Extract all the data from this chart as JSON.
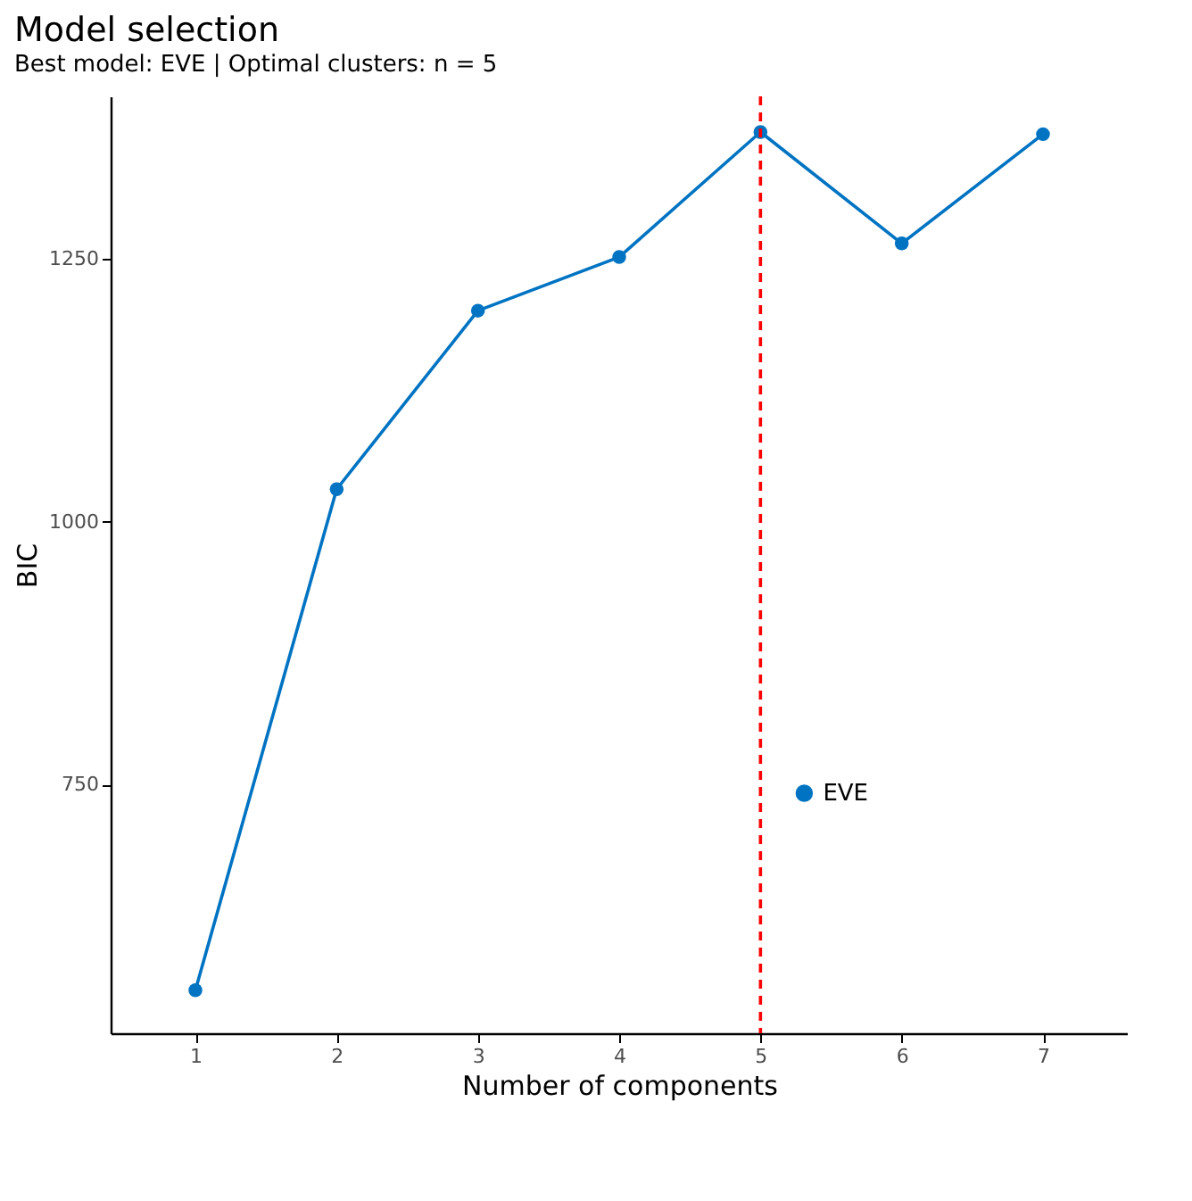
{
  "chart_data": {
    "type": "line",
    "title": "Model selection",
    "subtitle": "Best model: EVE | Optimal clusters: n = 5",
    "xlabel": "Number of components",
    "ylabel": "BIC",
    "x": [
      1,
      2,
      3,
      4,
      5,
      6,
      7
    ],
    "series": [
      {
        "name": "EVE",
        "color": "#0073c2",
        "values": [
          554,
          1031,
          1201,
          1252,
          1371,
          1265,
          1369
        ]
      }
    ],
    "xlim": [
      0.4,
      7.6
    ],
    "xticks": [
      1,
      2,
      3,
      4,
      5,
      6,
      7
    ],
    "ylim": [
      513,
      1405
    ],
    "yticks": [
      750,
      1000,
      1250
    ],
    "ref_lines": [
      {
        "axis": "x",
        "value": 5,
        "color": "#ff0000",
        "line_style": "dashed"
      }
    ],
    "grid": false,
    "legend": "right",
    "marker": "circle",
    "line_style": "solid"
  }
}
